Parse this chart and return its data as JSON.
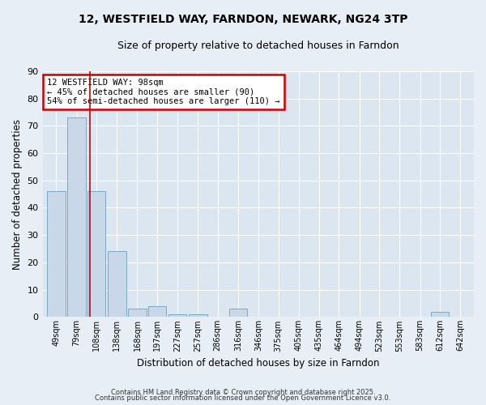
{
  "title": "12, WESTFIELD WAY, FARNDON, NEWARK, NG24 3TP",
  "subtitle": "Size of property relative to detached houses in Farndon",
  "xlabel": "Distribution of detached houses by size in Farndon",
  "ylabel": "Number of detached properties",
  "bar_color": "#c8d8e8",
  "bar_edge_color": "#7aaac8",
  "bins": [
    49,
    79,
    108,
    138,
    168,
    197,
    227,
    257,
    286,
    316,
    346,
    375,
    405,
    435,
    464,
    494,
    523,
    553,
    583,
    612,
    642
  ],
  "counts": [
    46,
    73,
    46,
    24,
    3,
    4,
    1,
    1,
    0,
    3,
    0,
    0,
    0,
    0,
    0,
    0,
    0,
    0,
    0,
    2,
    0
  ],
  "tick_labels": [
    "49sqm",
    "79sqm",
    "108sqm",
    "138sqm",
    "168sqm",
    "197sqm",
    "227sqm",
    "257sqm",
    "286sqm",
    "316sqm",
    "346sqm",
    "375sqm",
    "405sqm",
    "435sqm",
    "464sqm",
    "494sqm",
    "523sqm",
    "553sqm",
    "583sqm",
    "612sqm",
    "642sqm"
  ],
  "red_line_x": 98,
  "annotation_text": "12 WESTFIELD WAY: 98sqm\n← 45% of detached houses are smaller (90)\n54% of semi-detached houses are larger (110) →",
  "annotation_box_facecolor": "#ffffff",
  "annotation_box_edgecolor": "#cc0000",
  "ylim": [
    0,
    90
  ],
  "yticks": [
    0,
    10,
    20,
    30,
    40,
    50,
    60,
    70,
    80,
    90
  ],
  "fig_bg_color": "#e8eef5",
  "axes_bg_color": "#dce6f0",
  "grid_color": "#ffffff",
  "footer_line1": "Contains HM Land Registry data © Crown copyright and database right 2025.",
  "footer_line2": "Contains public sector information licensed under the Open Government Licence v3.0."
}
